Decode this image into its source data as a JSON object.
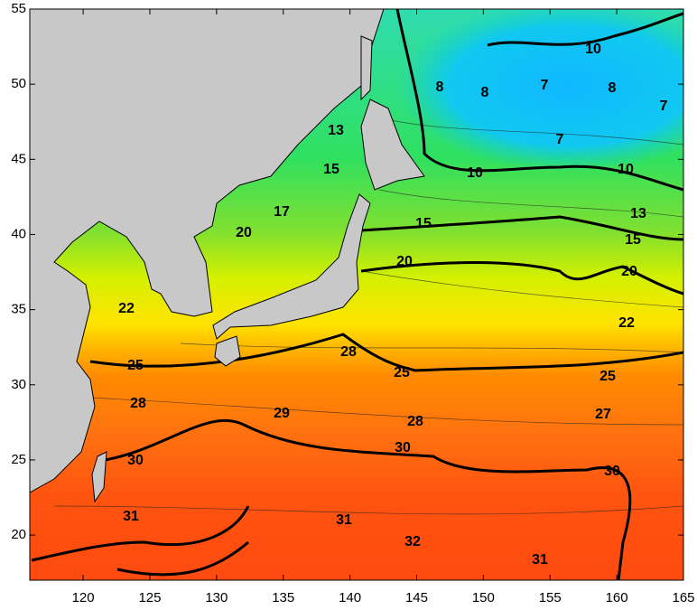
{
  "map": {
    "type": "contour",
    "xlim": [
      116,
      165
    ],
    "ylim": [
      17,
      55
    ],
    "xticks": [
      120,
      125,
      130,
      135,
      140,
      145,
      150,
      155,
      160,
      165
    ],
    "yticks": [
      20,
      25,
      30,
      35,
      40,
      45,
      50,
      55
    ],
    "contour_labels": [
      10,
      8,
      8,
      7,
      8,
      7,
      7,
      13,
      15,
      17,
      10,
      10,
      13,
      15,
      20,
      15,
      20,
      20,
      22,
      22,
      25,
      28,
      25,
      25,
      28,
      29,
      28,
      27,
      30,
      30,
      30,
      31,
      31,
      32,
      31
    ]
  }
}
